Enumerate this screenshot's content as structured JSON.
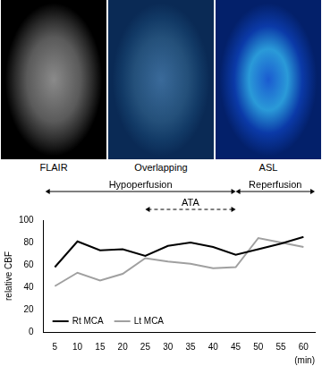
{
  "panels": [
    "FLAIR",
    "Overlapping",
    "ASL"
  ],
  "chart_data": {
    "type": "line",
    "categories": [
      "5",
      "10",
      "15",
      "20",
      "25",
      "30",
      "35",
      "40",
      "45",
      "50",
      "55",
      "60"
    ],
    "series": [
      {
        "name": "Rt MCA",
        "color": "#000000",
        "values": [
          58,
          81,
          73,
          74,
          68,
          77,
          80,
          76,
          69,
          74,
          79,
          85
        ]
      },
      {
        "name": "Lt MCA",
        "color": "#a0a0a0",
        "values": [
          41,
          53,
          46,
          52,
          66,
          63,
          61,
          57,
          58,
          84,
          80,
          76
        ]
      }
    ],
    "y_label": "relative CBF",
    "x_label": "(min)",
    "ylim": [
      0,
      100
    ],
    "yticks": [
      0,
      20,
      40,
      60,
      80,
      100
    ],
    "grid": false,
    "legend": "lower left",
    "annotations": [
      {
        "text": "Hypoperfusion",
        "from": "5",
        "to": "45",
        "line_style": "solid"
      },
      {
        "text": "Reperfusion",
        "from": "45",
        "to": "60",
        "line_style": "solid"
      },
      {
        "text": "ATA",
        "from": "25",
        "to": "45",
        "line_style": "dashed"
      }
    ]
  }
}
